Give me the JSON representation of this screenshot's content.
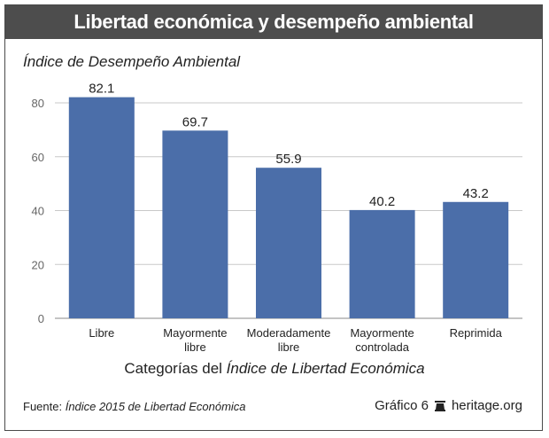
{
  "title": "Libertad económica y desempeño ambiental",
  "colors": {
    "bar": "#4b6ea9",
    "banner": "#4d4d4d",
    "grid": "#c8c8c8"
  },
  "chart_data": {
    "type": "bar",
    "ylabel": "Índice de Desempeño Ambiental",
    "xlabel_parts": [
      "Categorías del ",
      "Índice de Libertad Económica"
    ],
    "categories": [
      [
        "Libre"
      ],
      [
        "Mayormente",
        "libre"
      ],
      [
        "Moderadamente",
        "libre"
      ],
      [
        "Mayormente",
        "controlada"
      ],
      [
        "Reprimida"
      ]
    ],
    "values": [
      82.1,
      69.7,
      55.9,
      40.2,
      43.2
    ],
    "value_labels": [
      "82.1",
      "69.7",
      "55.9",
      "40.2",
      "43.2"
    ],
    "ylim": [
      0,
      80
    ],
    "yticks": [
      0,
      20,
      40,
      60,
      80
    ],
    "grid": true
  },
  "footer": {
    "source_label": "Fuente:",
    "source_text": "Índice 2015 de Libertad Económica",
    "chart_number": "Gráfico 6",
    "site": "heritage.org",
    "logo_icon": "bell-icon"
  }
}
